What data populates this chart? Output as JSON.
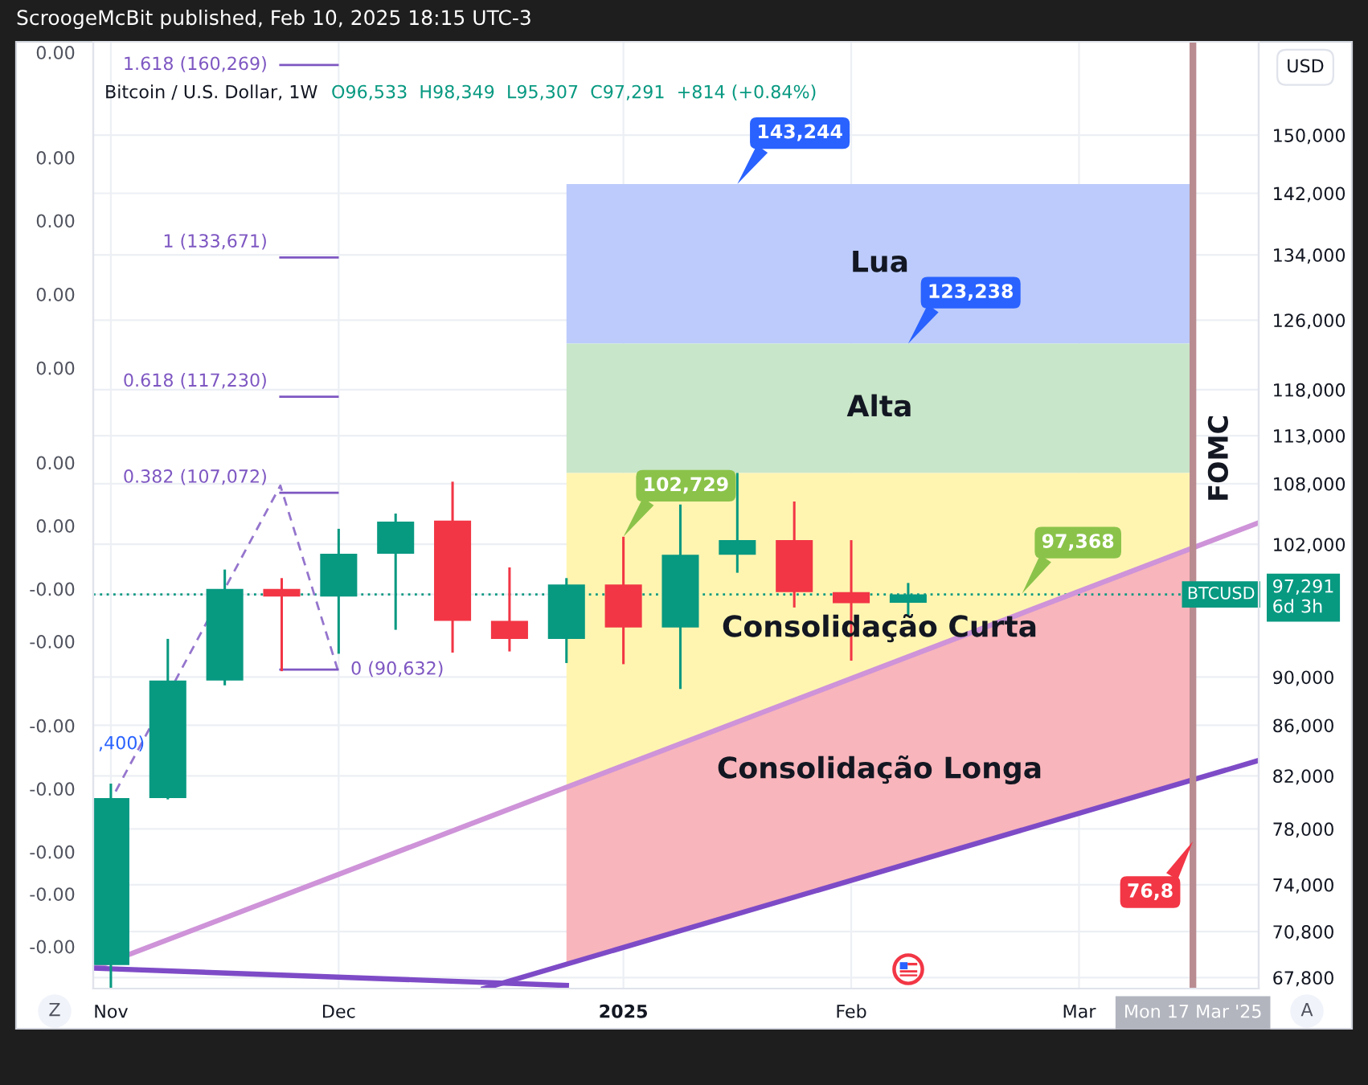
{
  "chart_data": {
    "type": "candlestick",
    "title": "ScroogeMcBit published, Feb 10, 2025 18:15 UTC-3",
    "subtitle": "Bitcoin / U.S. Dollar, 1W",
    "ylabel": "USD",
    "log": true,
    "xlim": [
      "2024-11-01T20:00",
      "2025-03-25T02:00"
    ],
    "xticks": [
      {
        "value": "2024-11-04",
        "label": "Nov"
      },
      {
        "value": "2024-12-02",
        "label": "Dec"
      },
      {
        "value": "2025-01-06",
        "label": "2025"
      },
      {
        "value": "2025-02-03",
        "label": "Feb"
      },
      {
        "value": "2025-03-03",
        "label": "Mar"
      },
      {
        "value": "2025-03-17",
        "label": "Mon 17 Mar '25"
      }
    ],
    "ylim": [
      67100,
      163800
    ],
    "yticks": [
      {
        "value": 67800,
        "label": "67,800"
      },
      {
        "value": 70800,
        "label": "70,800"
      },
      {
        "value": 74000,
        "label": "74,000"
      },
      {
        "value": 78000,
        "label": "78,000"
      },
      {
        "value": 82000,
        "label": "82,000"
      },
      {
        "value": 86000,
        "label": "86,000"
      },
      {
        "value": 90000,
        "label": "90,000"
      },
      {
        "value": 97291,
        "label": "97,291\n6d 3h"
      },
      {
        "value": 102000,
        "label": "102,000"
      },
      {
        "value": 108000,
        "label": "108,000"
      },
      {
        "value": 113000,
        "label": "113,000"
      },
      {
        "value": 118000,
        "label": "118,000"
      },
      {
        "value": 126000,
        "label": "126,000"
      },
      {
        "value": 134000,
        "label": "134,000"
      },
      {
        "value": 142000,
        "label": "142,000"
      },
      {
        "value": 150000,
        "label": "150,000"
      }
    ],
    "y2lim": [
      -0.004,
      0.005
    ],
    "y2ticks": [
      {
        "value": -0.0036,
        "label": "-0.00"
      },
      {
        "value": -0.0031,
        "label": "-0.00"
      },
      {
        "value": -0.0027,
        "label": "-0.00"
      },
      {
        "value": -0.0021,
        "label": "-0.00"
      },
      {
        "value": -0.0015,
        "label": "-0.00"
      },
      {
        "value": -0.0007,
        "label": "-0.00"
      },
      {
        "value": -0.0002,
        "label": "-0.00"
      },
      {
        "value": 0.0004,
        "label": "0.00"
      },
      {
        "value": 0.001,
        "label": "0.00"
      },
      {
        "value": 0.0019,
        "label": "0.00"
      },
      {
        "value": 0.0026,
        "label": "0.00"
      },
      {
        "value": 0.0033,
        "label": "0.00"
      },
      {
        "value": 0.0039,
        "label": "0.00"
      },
      {
        "value": 0.0049,
        "label": "0.00"
      }
    ],
    "grid": true,
    "ref_lines": [
      {
        "axis": "x",
        "value": "2025-03-17",
        "label": "FOMC",
        "color": "#b98c91"
      },
      {
        "axis": "y",
        "value": 97291,
        "label": "BTCUSD",
        "color": "#089981",
        "line_style": "dotted"
      }
    ],
    "annotations": [
      "O96,533  H98,349  L95,307  C97,291  +814 (+0.84%)",
      "Z",
      "A",
      ",400)",
      {
        "text": "143,244",
        "x": "2025-01-20",
        "y": 143244
      },
      {
        "text": "123,238",
        "x": "2025-02-10",
        "y": 123238
      },
      {
        "text": "102,729",
        "x": "2025-01-06",
        "y": 102729
      },
      {
        "text": "97,368",
        "x": "2025-02-24",
        "y": 97368
      },
      {
        "text": "76,8",
        "x": "2025-03-17",
        "y": 77100
      },
      "Lua",
      "Alta",
      "Consolidação Curta",
      "Consolidação Longa"
    ],
    "series": [
      {
        "type": "area",
        "color": "#bccbfb",
        "x": [
          "2024-12-30",
          "2025-03-17"
        ],
        "values": [
          null,
          null
        ],
        "lower": [
          123238,
          123238
        ],
        "upper": [
          143244,
          143244
        ]
      },
      {
        "type": "area",
        "color": "#c8e6c9",
        "x": [
          "2024-12-30",
          "2025-03-17"
        ],
        "values": [
          null,
          null
        ],
        "lower": [
          109100,
          109100
        ],
        "upper": [
          123238,
          123238
        ]
      },
      {
        "type": "area",
        "color": "#fff5b1",
        "x": [
          "2024-12-30",
          "2025-03-17"
        ],
        "values": [
          null,
          null
        ],
        "lower": [
          81100,
          101700
        ],
        "upper": [
          109100,
          109100
        ]
      },
      {
        "type": "area",
        "color": "#f8b5bb",
        "x": [
          "2024-12-30",
          "2025-03-17"
        ],
        "values": [
          null,
          null
        ],
        "lower": [
          68600,
          81700
        ],
        "upper": [
          81100,
          101700
        ]
      },
      {
        "type": "line",
        "color": "#ce93d8",
        "x": [
          "2024-11-01T20:00",
          "2025-03-25T02:00"
        ],
        "values": [
          68400,
          104100
        ]
      },
      {
        "type": "line",
        "color": "#7e4bc7",
        "x": [
          "2024-11-01T20:00",
          "2024-12-30"
        ],
        "values": [
          68400,
          67300
        ]
      },
      {
        "type": "line",
        "color": "#7e4bc7",
        "x": [
          "2024-12-19T20:00",
          "2025-03-25T02:00"
        ],
        "values": [
          67100,
          83200
        ]
      },
      {
        "type": "line",
        "color": "#9575cd",
        "line_style": "dashed",
        "x": [
          "2024-11-04T14:00",
          "2024-11-24T20:00",
          "2024-12-01T21:00"
        ],
        "values": [
          80800,
          107800,
          90632
        ]
      },
      {
        "type": "line",
        "name": "1.618 (160,269)",
        "color": "#7e57c2",
        "x": [
          "2024-11-24T20:00",
          "2024-12-01T21:00"
        ],
        "values": [
          160269,
          160269
        ]
      },
      {
        "type": "line",
        "name": "1 (133,671)",
        "color": "#7e57c2",
        "x": [
          "2024-11-24T20:00",
          "2024-12-01T21:00"
        ],
        "values": [
          133671,
          133671
        ]
      },
      {
        "type": "line",
        "name": "0.618 (117,230)",
        "color": "#7e57c2",
        "x": [
          "2024-11-24T20:00",
          "2024-12-01T21:00"
        ],
        "values": [
          117230,
          117230
        ]
      },
      {
        "type": "line",
        "name": "0.382 (107,072)",
        "color": "#7e57c2",
        "x": [
          "2024-11-24T20:00",
          "2024-12-01T21:00"
        ],
        "values": [
          107072,
          107072
        ]
      },
      {
        "type": "line",
        "name": "0 (90,632)",
        "color": "#7e57c2",
        "x": [
          "2024-11-24T20:00",
          "2024-12-01T21:00"
        ],
        "values": [
          90632,
          90632
        ]
      },
      {
        "x": [
          "2024-11-04",
          "2024-11-11",
          "2024-11-18",
          "2024-11-25",
          "2024-12-02",
          "2024-12-09",
          "2024-12-16",
          "2024-12-23",
          "2024-12-30",
          "2025-01-06",
          "2025-01-13",
          "2025-01-20",
          "2025-01-27",
          "2025-02-03",
          "2025-02-10"
        ],
        "ohlc": [
          [
            68600,
            81400,
            67100,
            80300
          ],
          [
            80300,
            93300,
            80200,
            89700
          ],
          [
            89700,
            99600,
            89300,
            97800
          ],
          [
            97800,
            98800,
            90500,
            97100
          ],
          [
            97100,
            103500,
            92000,
            101100
          ],
          [
            101100,
            105000,
            94100,
            104200
          ],
          [
            104300,
            108200,
            92100,
            94900
          ],
          [
            94900,
            99800,
            92200,
            93300
          ],
          [
            93300,
            98800,
            91200,
            98200
          ],
          [
            98200,
            102729,
            91100,
            94300
          ],
          [
            94300,
            105900,
            89000,
            101000
          ],
          [
            101000,
            109100,
            99300,
            102400
          ],
          [
            102400,
            106200,
            96100,
            97500
          ],
          [
            97500,
            102400,
            91400,
            96500
          ],
          [
            96533,
            98349,
            95307,
            97291
          ]
        ],
        "colors": [
          "#089981",
          "#089981",
          "#089981",
          "#f23645",
          "#089981",
          "#089981",
          "#f23645",
          "#f23645",
          "#089981",
          "#f23645",
          "#089981",
          "#089981",
          "#f23645",
          "#f23645",
          "#089981"
        ]
      }
    ]
  }
}
